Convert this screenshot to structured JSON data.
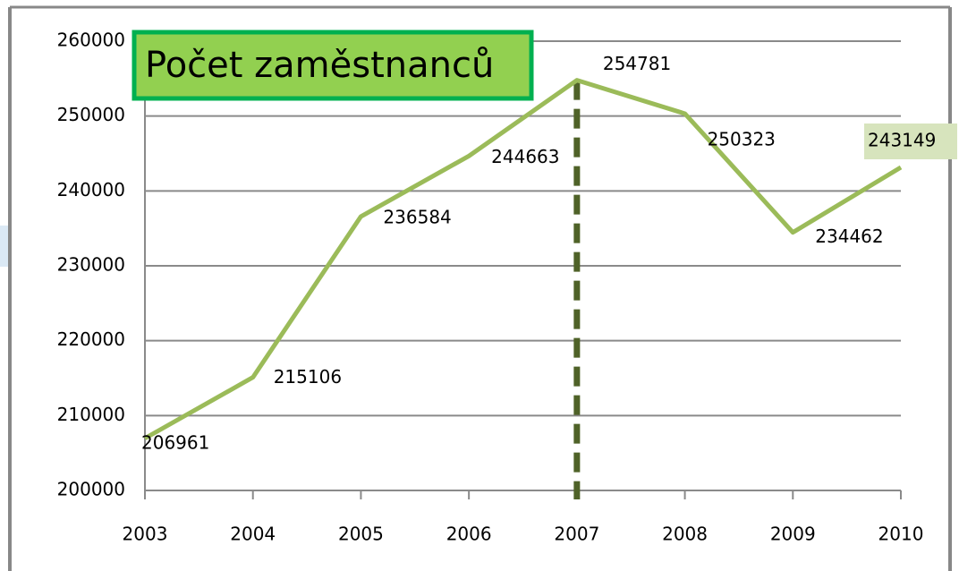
{
  "chart_data": {
    "type": "line",
    "title": "Počet zaměstnanců",
    "categories": [
      "2003",
      "2004",
      "2005",
      "2006",
      "2007",
      "2008",
      "2009",
      "2010"
    ],
    "series": [
      {
        "name": "Počet zaměstnanců",
        "color": "#9bbb59",
        "values": [
          206961,
          215106,
          236584,
          244663,
          254781,
          250323,
          234462,
          243149
        ]
      }
    ],
    "ylim": [
      200000,
      260000
    ],
    "yticks": [
      200000,
      210000,
      220000,
      230000,
      240000,
      250000,
      260000
    ],
    "grid": true
  }
}
